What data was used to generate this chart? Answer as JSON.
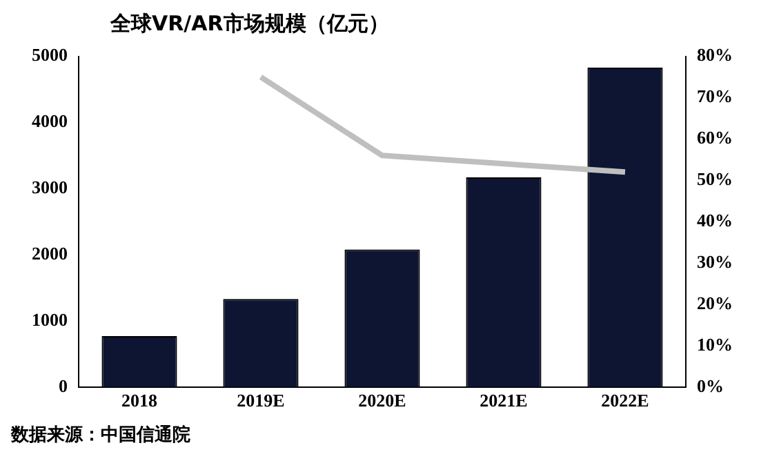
{
  "chart_data": {
    "type": "bar",
    "title": "全球VR/AR市场规模（亿元）",
    "categories": [
      "2018",
      "2019E",
      "2020E",
      "2021E",
      "2022E"
    ],
    "series": [
      {
        "color": "#0d1533",
        "values": [
          770,
          1330,
          2080,
          3170,
          4830
        ]
      },
      {
        "type": "line",
        "axis": "y2",
        "color": "#bfbfbf",
        "values": [
          null,
          75,
          56,
          54,
          52
        ]
      }
    ],
    "ylim": [
      0,
      5000
    ],
    "yticks": [
      0,
      1000,
      2000,
      3000,
      4000,
      5000
    ],
    "y2lim": [
      0,
      80
    ],
    "y2ticks": [
      {
        "value": 0,
        "label": "0%"
      },
      {
        "value": 10,
        "label": "10%"
      },
      {
        "value": 20,
        "label": "20%"
      },
      {
        "value": 30,
        "label": "30%"
      },
      {
        "value": 40,
        "label": "40%"
      },
      {
        "value": 50,
        "label": "50%"
      },
      {
        "value": 60,
        "label": "60%"
      },
      {
        "value": 70,
        "label": "70%"
      },
      {
        "value": 80,
        "label": "80%"
      }
    ],
    "grid": false,
    "legend": false,
    "marker": "none",
    "annotations": [
      "数据来源：中国信通院"
    ]
  }
}
